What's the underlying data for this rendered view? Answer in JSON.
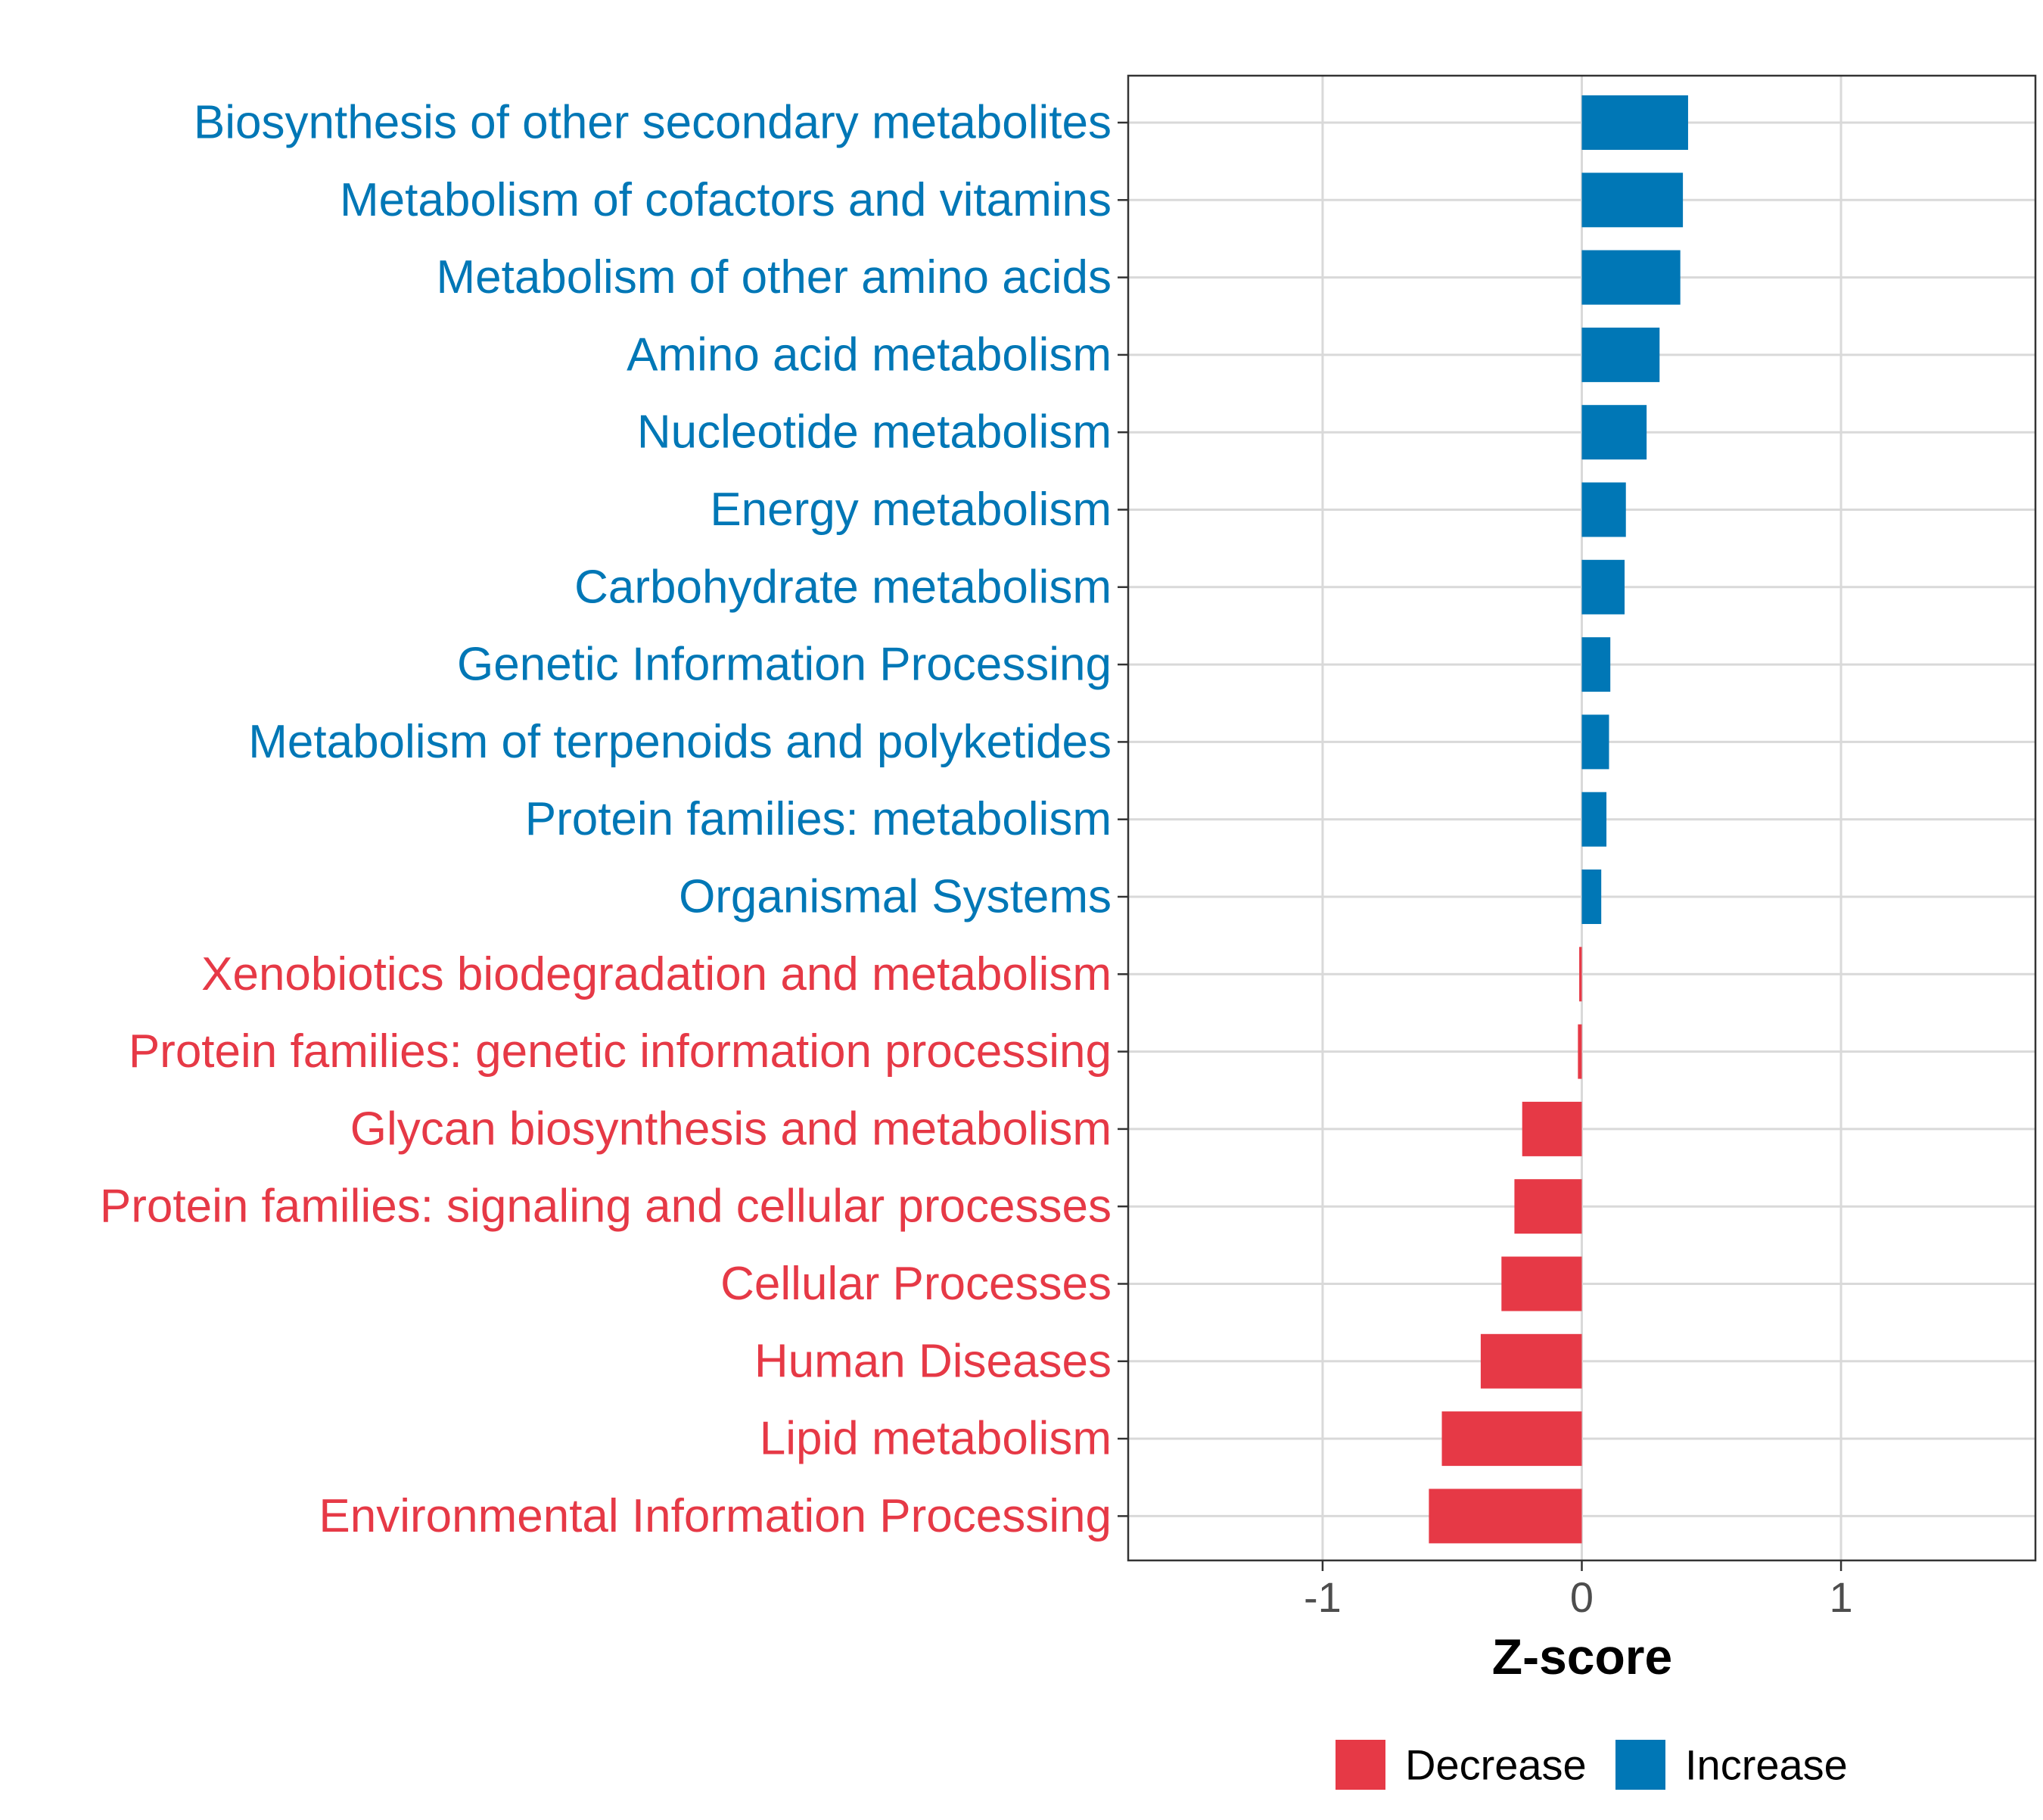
{
  "chart_data": {
    "type": "bar",
    "orientation": "horizontal",
    "title": "",
    "xlabel": "Z-score",
    "ylabel": "",
    "xlim": [
      -1.75,
      1.75
    ],
    "xticks": [
      -1,
      0,
      1
    ],
    "xtick_labels": [
      "-1",
      "0",
      "1"
    ],
    "grid": true,
    "legend_position": "bottom",
    "legend": [
      {
        "key": "decrease",
        "label": "Decrease",
        "color": "#E63946"
      },
      {
        "key": "increase",
        "label": "Increase",
        "color": "#0077B6"
      }
    ],
    "categories": [
      "Biosynthesis of other secondary metabolites",
      "Metabolism of cofactors and vitamins",
      "Metabolism of other amino acids",
      "Amino acid metabolism",
      "Nucleotide metabolism",
      "Energy metabolism",
      "Carbohydrate metabolism",
      "Genetic Information Processing",
      "Metabolism of terpenoids and polyketides",
      "Protein families: metabolism",
      "Organismal Systems",
      "Xenobiotics biodegradation and metabolism",
      "Protein families: genetic information processing",
      "Glycan biosynthesis and metabolism",
      "Protein families: signaling and cellular processes",
      "Cellular Processes",
      "Human Diseases",
      "Lipid metabolism",
      "Environmental Information Processing"
    ],
    "values": [
      0.41,
      0.39,
      0.38,
      0.3,
      0.25,
      0.17,
      0.165,
      0.11,
      0.105,
      0.095,
      0.075,
      -0.01,
      -0.015,
      -0.23,
      -0.26,
      -0.31,
      -0.39,
      -0.54,
      -0.59
    ],
    "groups": [
      "increase",
      "increase",
      "increase",
      "increase",
      "increase",
      "increase",
      "increase",
      "increase",
      "increase",
      "increase",
      "increase",
      "decrease",
      "decrease",
      "decrease",
      "decrease",
      "decrease",
      "decrease",
      "decrease",
      "decrease"
    ]
  }
}
